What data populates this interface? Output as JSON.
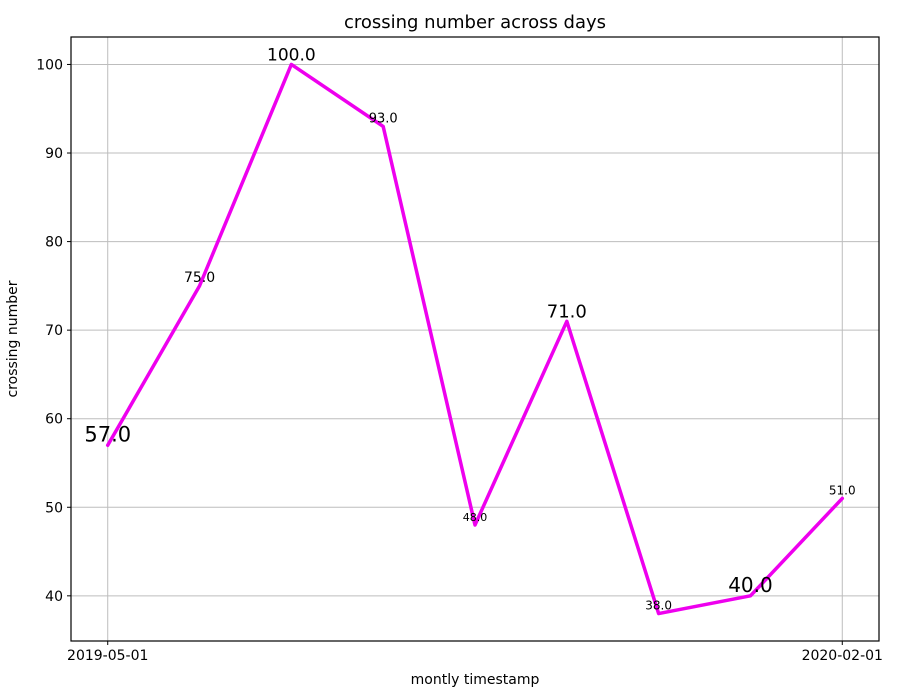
{
  "chart_data": {
    "type": "line",
    "title": "crossing number across days",
    "xlabel": "montly timestamp",
    "ylabel": "crossing number",
    "x": [
      0,
      1,
      2,
      3,
      4,
      5,
      6,
      7,
      8
    ],
    "values": [
      57,
      75,
      100,
      93,
      48,
      71,
      38,
      40,
      51
    ],
    "point_labels": [
      "57.0",
      "75.0",
      "100.0",
      "93.0",
      "48.0",
      "71.0",
      "38.0",
      "40.0",
      "51.0"
    ],
    "point_label_font_sizes": [
      21,
      14,
      17,
      13,
      11,
      18,
      12,
      20,
      12
    ],
    "x_ticks": [
      {
        "pos": 0,
        "label": "2019-05-01"
      },
      {
        "pos": 8,
        "label": "2020-02-01"
      }
    ],
    "y_ticks": [
      40,
      50,
      60,
      70,
      80,
      90,
      100
    ],
    "xlim": [
      -0.4,
      8.4
    ],
    "ylim": [
      34.9,
      103.1
    ],
    "grid": true,
    "legend": "none",
    "line_color": "#EE00EE",
    "grid_color": "#BDBDBD",
    "spine_color": "#000000",
    "text_color": "#000000"
  }
}
